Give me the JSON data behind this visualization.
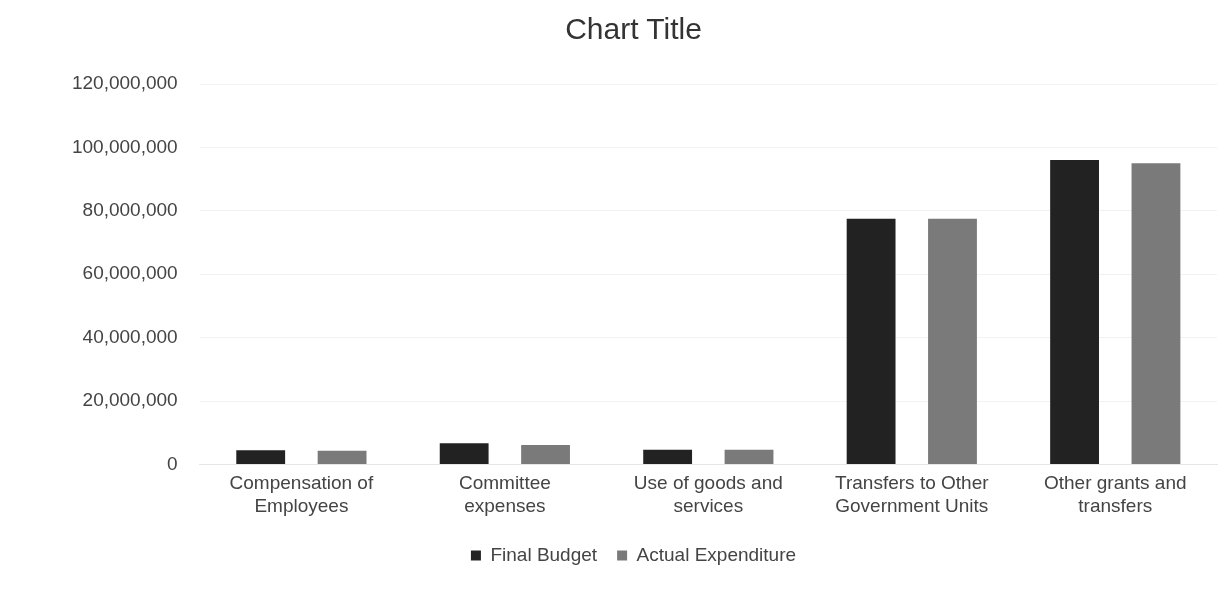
{
  "chart_data": {
    "type": "bar",
    "title": "Chart Title",
    "categories": [
      [
        "Compensation of",
        "Employees"
      ],
      [
        "Committee",
        "expenses"
      ],
      [
        "Use of goods and",
        "services"
      ],
      [
        "Transfers to Other",
        "Government Units"
      ],
      [
        "Other grants and",
        "transfers"
      ]
    ],
    "series": [
      {
        "name": "Final Budget",
        "color": "#222222",
        "values": [
          4500000,
          6700000,
          4600000,
          77500000,
          96000000
        ]
      },
      {
        "name": "Actual Expenditure",
        "color": "#7a7a7a",
        "values": [
          4300000,
          6100000,
          4600000,
          77500000,
          95000000
        ]
      }
    ],
    "ylim": [
      0,
      120000000
    ],
    "yticks": [
      0,
      {
        "value": 20000000,
        "label": "20,000,000"
      },
      {
        "value": 40000000,
        "label": "40,000,000"
      },
      {
        "value": 60000000,
        "label": "60,000,000"
      },
      {
        "value": 80000000,
        "label": "80,000,000"
      },
      {
        "value": 100000000,
        "label": "100,000,000"
      },
      {
        "value": 120000000,
        "label": "120,000,000"
      }
    ],
    "grid": "y",
    "legend": "bottom"
  }
}
